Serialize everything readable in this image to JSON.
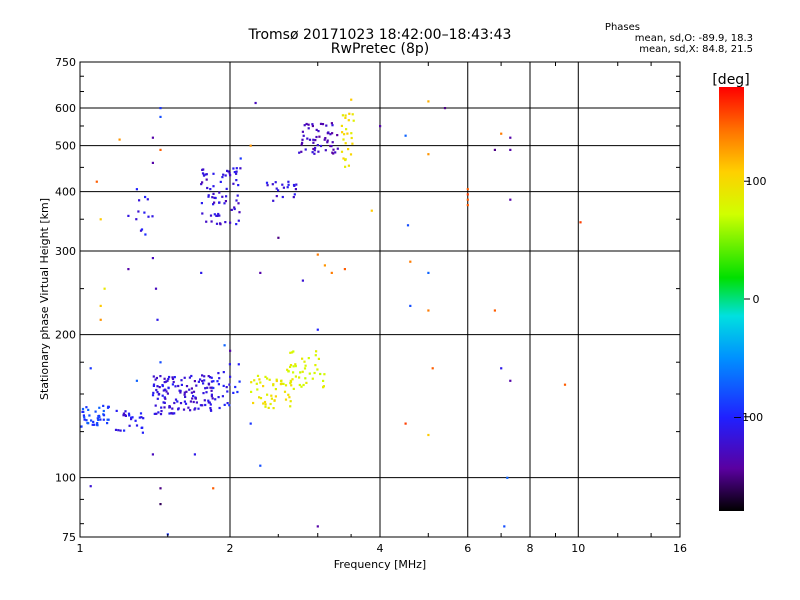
{
  "header": {
    "title_line1": "Tromsø 20171023 18:42:00–18:43:43",
    "title_line2": "RwPretec (8p)",
    "phases_label": "Phases",
    "phase_o": "mean, sd,O: -89.9, 18.3",
    "phase_x": "mean, sd,X: 84.8, 21.5"
  },
  "colorbar": {
    "unit_label": "[deg]",
    "ticks": [
      100,
      0,
      -100
    ],
    "range": [
      -180,
      180
    ]
  },
  "chart_data": {
    "type": "scatter",
    "xlabel": "Frequency [MHz]",
    "ylabel": "Stationary phase Virtual Height [km]",
    "x_scale": "log",
    "y_scale": "log",
    "xlim": [
      1,
      16
    ],
    "ylim": [
      75,
      750
    ],
    "x_ticks": [
      1,
      2,
      4,
      6,
      8,
      10,
      16
    ],
    "y_ticks": [
      75,
      100,
      200,
      300,
      400,
      500,
      600,
      750
    ],
    "grid": true,
    "clusters": [
      {
        "x_range": [
          1.0,
          1.15
        ],
        "y_range": [
          128,
          142
        ],
        "phase": -85,
        "count": 40
      },
      {
        "x_range": [
          1.18,
          1.35
        ],
        "y_range": [
          124,
          140
        ],
        "phase": -110,
        "count": 25
      },
      {
        "x_range": [
          1.4,
          1.6
        ],
        "y_range": [
          135,
          165
        ],
        "phase": -115,
        "count": 70
      },
      {
        "x_range": [
          1.6,
          1.85
        ],
        "y_range": [
          138,
          165
        ],
        "phase": -120,
        "count": 65
      },
      {
        "x_range": [
          1.85,
          2.1
        ],
        "y_range": [
          140,
          175
        ],
        "phase": -105,
        "count": 25
      },
      {
        "x_range": [
          2.2,
          2.7
        ],
        "y_range": [
          140,
          165
        ],
        "phase": 90,
        "count": 50
      },
      {
        "x_range": [
          2.6,
          3.1
        ],
        "y_range": [
          155,
          185
        ],
        "phase": 80,
        "count": 40
      },
      {
        "x_range": [
          1.75,
          2.1
        ],
        "y_range": [
          340,
          450
        ],
        "phase": -120,
        "count": 70
      },
      {
        "x_range": [
          2.35,
          2.75
        ],
        "y_range": [
          380,
          420
        ],
        "phase": -115,
        "count": 20
      },
      {
        "x_range": [
          2.75,
          3.3
        ],
        "y_range": [
          480,
          560
        ],
        "phase": -130,
        "count": 55
      },
      {
        "x_range": [
          3.35,
          3.55
        ],
        "y_range": [
          450,
          590
        ],
        "phase": 95,
        "count": 25
      },
      {
        "x_range": [
          1.25,
          1.4
        ],
        "y_range": [
          320,
          390
        ],
        "phase": -110,
        "count": 12
      }
    ],
    "scattered_points": [
      {
        "x": 1.05,
        "y": 96,
        "phase": -120
      },
      {
        "x": 1.4,
        "y": 112,
        "phase": -130
      },
      {
        "x": 1.45,
        "y": 95,
        "phase": -150
      },
      {
        "x": 1.45,
        "y": 88,
        "phase": -160
      },
      {
        "x": 1.5,
        "y": 76,
        "phase": -90
      },
      {
        "x": 1.7,
        "y": 112,
        "phase": -110
      },
      {
        "x": 1.85,
        "y": 95,
        "phase": 150
      },
      {
        "x": 2.3,
        "y": 106,
        "phase": -80
      },
      {
        "x": 2.2,
        "y": 130,
        "phase": -90
      },
      {
        "x": 3.0,
        "y": 79,
        "phase": -140
      },
      {
        "x": 1.1,
        "y": 230,
        "phase": 110
      },
      {
        "x": 1.12,
        "y": 250,
        "phase": 90
      },
      {
        "x": 1.1,
        "y": 215,
        "phase": 130
      },
      {
        "x": 1.1,
        "y": 350,
        "phase": 110
      },
      {
        "x": 1.08,
        "y": 420,
        "phase": 150
      },
      {
        "x": 1.2,
        "y": 515,
        "phase": 130
      },
      {
        "x": 1.25,
        "y": 275,
        "phase": -140
      },
      {
        "x": 1.4,
        "y": 290,
        "phase": -130
      },
      {
        "x": 1.42,
        "y": 250,
        "phase": -130
      },
      {
        "x": 1.43,
        "y": 215,
        "phase": -110
      },
      {
        "x": 1.45,
        "y": 600,
        "phase": -90
      },
      {
        "x": 1.45,
        "y": 575,
        "phase": -80
      },
      {
        "x": 1.4,
        "y": 520,
        "phase": -140
      },
      {
        "x": 1.45,
        "y": 490,
        "phase": 150
      },
      {
        "x": 1.4,
        "y": 460,
        "phase": -140
      },
      {
        "x": 1.75,
        "y": 270,
        "phase": -110
      },
      {
        "x": 2.25,
        "y": 615,
        "phase": -130
      },
      {
        "x": 2.3,
        "y": 270,
        "phase": -140
      },
      {
        "x": 2.5,
        "y": 320,
        "phase": -150
      },
      {
        "x": 2.8,
        "y": 260,
        "phase": -120
      },
      {
        "x": 3.0,
        "y": 295,
        "phase": 140
      },
      {
        "x": 3.1,
        "y": 280,
        "phase": 130
      },
      {
        "x": 3.2,
        "y": 270,
        "phase": 140
      },
      {
        "x": 3.0,
        "y": 205,
        "phase": -100
      },
      {
        "x": 3.4,
        "y": 275,
        "phase": 150
      },
      {
        "x": 3.5,
        "y": 625,
        "phase": 110
      },
      {
        "x": 3.85,
        "y": 365,
        "phase": 110
      },
      {
        "x": 4.0,
        "y": 550,
        "phase": -140
      },
      {
        "x": 4.5,
        "y": 525,
        "phase": -70
      },
      {
        "x": 4.55,
        "y": 340,
        "phase": -80
      },
      {
        "x": 4.6,
        "y": 285,
        "phase": 140
      },
      {
        "x": 4.6,
        "y": 230,
        "phase": -80
      },
      {
        "x": 4.5,
        "y": 130,
        "phase": 160
      },
      {
        "x": 5.0,
        "y": 270,
        "phase": -70
      },
      {
        "x": 5.0,
        "y": 225,
        "phase": 140
      },
      {
        "x": 5.0,
        "y": 480,
        "phase": 130
      },
      {
        "x": 5.0,
        "y": 620,
        "phase": 120
      },
      {
        "x": 5.1,
        "y": 170,
        "phase": 150
      },
      {
        "x": 5.0,
        "y": 123,
        "phase": 110
      },
      {
        "x": 5.4,
        "y": 600,
        "phase": -150
      },
      {
        "x": 6.0,
        "y": 405,
        "phase": 150
      },
      {
        "x": 6.0,
        "y": 395,
        "phase": 160
      },
      {
        "x": 6.0,
        "y": 385,
        "phase": 150
      },
      {
        "x": 6.0,
        "y": 375,
        "phase": 150
      },
      {
        "x": 6.8,
        "y": 490,
        "phase": -150
      },
      {
        "x": 6.8,
        "y": 225,
        "phase": 150
      },
      {
        "x": 7.0,
        "y": 530,
        "phase": 140
      },
      {
        "x": 7.3,
        "y": 520,
        "phase": -140
      },
      {
        "x": 7.3,
        "y": 490,
        "phase": -140
      },
      {
        "x": 7.3,
        "y": 385,
        "phase": -140
      },
      {
        "x": 7.0,
        "y": 170,
        "phase": -110
      },
      {
        "x": 7.3,
        "y": 160,
        "phase": -140
      },
      {
        "x": 7.2,
        "y": 100,
        "phase": -70
      },
      {
        "x": 7.1,
        "y": 79,
        "phase": -80
      },
      {
        "x": 9.4,
        "y": 157,
        "phase": 150
      },
      {
        "x": 10.1,
        "y": 345,
        "phase": 160
      },
      {
        "x": 2.1,
        "y": 470,
        "phase": -90
      },
      {
        "x": 2.2,
        "y": 500,
        "phase": 130
      },
      {
        "x": 1.3,
        "y": 405,
        "phase": -100
      },
      {
        "x": 1.05,
        "y": 170,
        "phase": -90
      },
      {
        "x": 1.3,
        "y": 160,
        "phase": -70
      },
      {
        "x": 1.45,
        "y": 175,
        "phase": -80
      },
      {
        "x": 1.95,
        "y": 190,
        "phase": -70
      },
      {
        "x": 2.0,
        "y": 185,
        "phase": -140
      }
    ]
  }
}
